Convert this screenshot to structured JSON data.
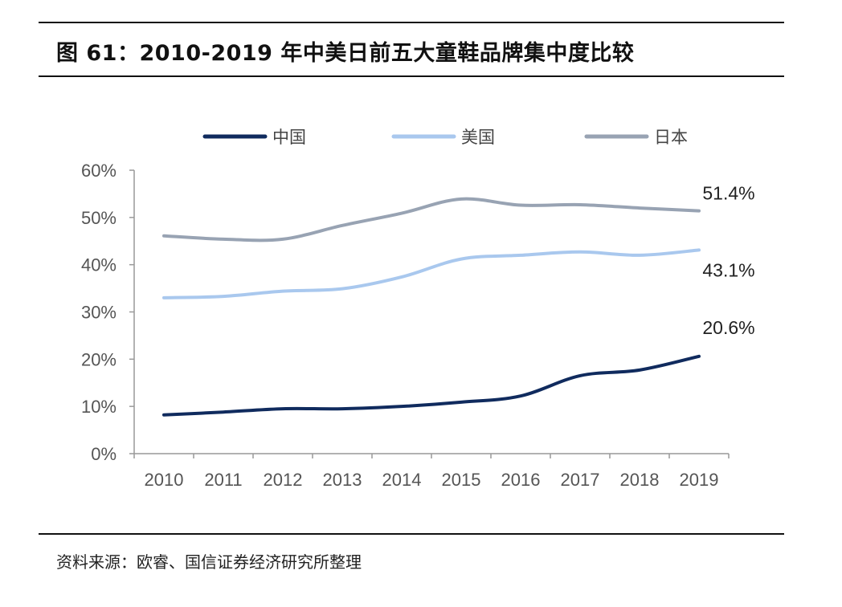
{
  "title": "图 61：2010-2019 年中美日前五大童鞋品牌集中度比较",
  "source": "资料来源：欧睿、国信证券经济研究所整理",
  "chart_data": {
    "type": "line",
    "title": "图 61：2010-2019 年中美日前五大童鞋品牌集中度比较",
    "xlabel": "",
    "ylabel": "",
    "categories": [
      "2010",
      "2011",
      "2012",
      "2013",
      "2014",
      "2015",
      "2016",
      "2017",
      "2018",
      "2019"
    ],
    "ylim": [
      0,
      60
    ],
    "yticks": [
      "0%",
      "10%",
      "20%",
      "30%",
      "40%",
      "50%",
      "60%"
    ],
    "grid": false,
    "legend": "top",
    "series": [
      {
        "name": "中国",
        "color": "#102b5e",
        "values": [
          8.2,
          8.8,
          9.5,
          9.5,
          10.0,
          10.9,
          12.2,
          16.5,
          17.7,
          20.6
        ],
        "end_label": "20.6%"
      },
      {
        "name": "美国",
        "color": "#a9c8ee",
        "values": [
          33.0,
          33.3,
          34.4,
          34.9,
          37.4,
          41.2,
          42.0,
          42.7,
          42.0,
          43.1
        ],
        "end_label": "43.1%"
      },
      {
        "name": "日本",
        "color": "#98a3b3",
        "values": [
          46.1,
          45.4,
          45.4,
          48.3,
          50.9,
          53.9,
          52.6,
          52.7,
          52.0,
          51.4
        ],
        "end_label": "51.4%"
      }
    ]
  }
}
